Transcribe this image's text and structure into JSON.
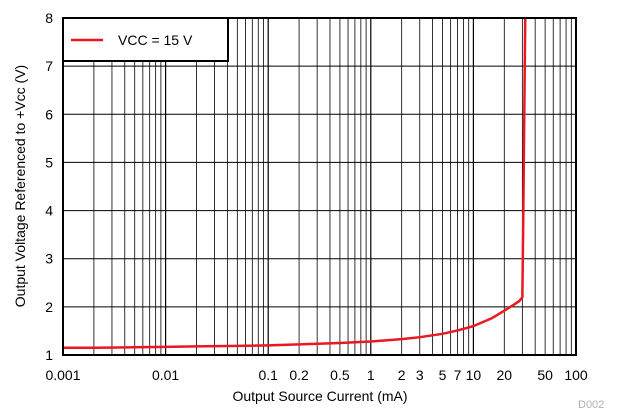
{
  "chart_data": {
    "type": "line",
    "title": "",
    "xlabel": "Output Source Current (mA)",
    "ylabel": "Output Voltage Referenced to +Vcc (V)",
    "x_scale": "log",
    "xlim": [
      0.001,
      100
    ],
    "ylim": [
      1,
      8
    ],
    "x_tick_values": [
      0.001,
      0.01,
      0.1,
      0.2,
      0.5,
      1,
      2,
      3,
      5,
      7,
      10,
      20,
      50,
      100
    ],
    "x_tick_labels": [
      "0.001",
      "0.01",
      "0.1",
      "0.2",
      "0.5",
      "1",
      "2",
      "3",
      "5",
      "7",
      "10",
      "20",
      "50",
      "100"
    ],
    "y_tick_values": [
      1,
      2,
      3,
      4,
      5,
      6,
      7,
      8
    ],
    "y_tick_labels": [
      "1",
      "2",
      "3",
      "4",
      "5",
      "6",
      "7",
      "8"
    ],
    "grid": true,
    "legend_position": "top-left",
    "series": [
      {
        "name": "VCC = 15 V",
        "color": "#e8191f",
        "x": [
          0.001,
          0.002,
          0.005,
          0.01,
          0.02,
          0.05,
          0.1,
          0.2,
          0.5,
          1,
          2,
          3,
          5,
          7,
          10,
          15,
          20,
          25,
          28,
          30,
          30.5,
          31,
          31.5,
          32
        ],
        "y": [
          1.15,
          1.15,
          1.16,
          1.17,
          1.18,
          1.19,
          1.2,
          1.22,
          1.25,
          1.28,
          1.33,
          1.37,
          1.44,
          1.51,
          1.6,
          1.76,
          1.92,
          2.05,
          2.12,
          2.2,
          3.5,
          5.0,
          6.5,
          8.0
        ]
      }
    ]
  },
  "watermark": "D002"
}
